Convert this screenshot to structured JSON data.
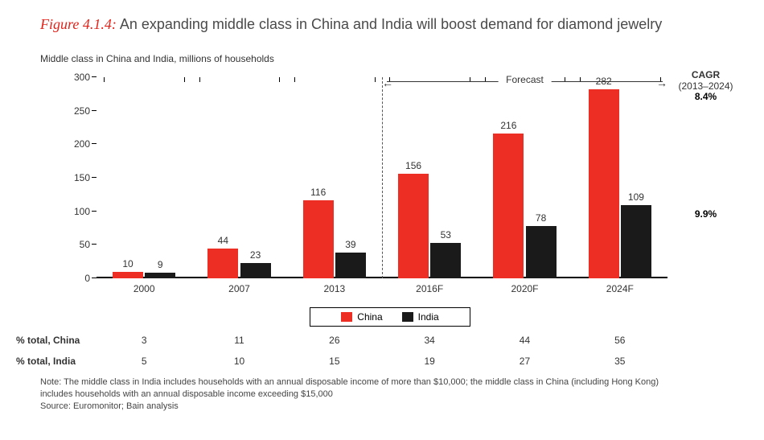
{
  "figure": {
    "label": "Figure 4.1.4:",
    "title": "An expanding middle class in China and India will boost demand for diamond jewelry"
  },
  "subtitle": "Middle class in China and India, millions of households",
  "chart": {
    "type": "bar",
    "ylim": [
      0,
      300
    ],
    "ytick_step": 50,
    "yticks": [
      0,
      50,
      100,
      150,
      200,
      250,
      300
    ],
    "series": [
      {
        "name": "China",
        "color": "#ed2e24"
      },
      {
        "name": "India",
        "color": "#1a1a1a"
      }
    ],
    "bar_width_pct": 32,
    "categories": [
      "2000",
      "2007",
      "2013",
      "2016F",
      "2020F",
      "2024F"
    ],
    "values_china": [
      10,
      44,
      116,
      156,
      216,
      282
    ],
    "values_india": [
      9,
      23,
      39,
      53,
      78,
      109
    ],
    "forecast_split_after_index": 2,
    "forecast_label": "Forecast",
    "background_color": "#ffffff",
    "axis_color": "#000000",
    "text_color": "#333333",
    "label_fontsize": 12
  },
  "cagr": {
    "header1": "CAGR",
    "header2": "(2013–2024)",
    "china": "8.4%",
    "india": "9.9%"
  },
  "legend": {
    "china": "China",
    "india": "India"
  },
  "pct_table": {
    "row_china_label": "% total, China",
    "row_india_label": "% total, India",
    "china": [
      3,
      11,
      26,
      34,
      44,
      56
    ],
    "india": [
      5,
      10,
      15,
      19,
      27,
      35
    ]
  },
  "note": {
    "line1": "Note:  The middle class in India includes households with an annual disposable income of more than $10,000; the middle class in China (including Hong Kong)",
    "line2": "includes households with an annual disposable income exceeding $15,000",
    "line3": "Source:  Euromonitor; Bain analysis"
  }
}
